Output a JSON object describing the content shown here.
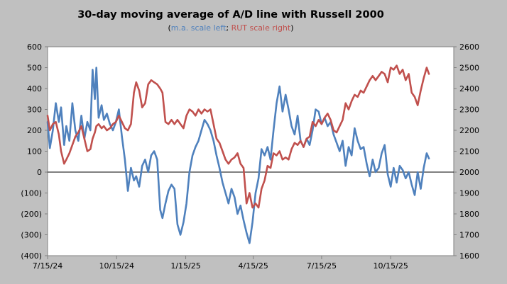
{
  "chart_data": {
    "type": "line",
    "title": "30-day moving average of A/D line with Russell 2000",
    "subtitle": {
      "open": "(",
      "left_note": "m.a. scale left",
      "sep": ";",
      "right_note": "RUT scale right",
      "close": ")"
    },
    "x_axis": {
      "start": "2024-07-15",
      "end": "2026-01-07",
      "tick_labels": [
        "7/15/24",
        "10/15/24",
        "1/15/25",
        "4/15/25",
        "7/15/25",
        "10/15/25"
      ],
      "tick_dates": [
        "2024-07-15",
        "2024-10-15",
        "2025-01-15",
        "2025-04-15",
        "2025-07-15",
        "2025-10-15"
      ]
    },
    "y_left": {
      "min": -400,
      "max": 600,
      "step": 100,
      "tick_labels": [
        "(400)",
        "(300)",
        "(200)",
        "(100)",
        "0",
        "100",
        "200",
        "300",
        "400",
        "500",
        "600"
      ]
    },
    "y_right": {
      "min": 1600,
      "max": 2600,
      "step": 100,
      "tick_labels": [
        "1600",
        "1700",
        "1800",
        "1900",
        "2000",
        "2100",
        "2200",
        "2300",
        "2400",
        "2500",
        "2600"
      ]
    },
    "grid": false,
    "series": [
      {
        "color": "#4f81bd",
        "axis": "left",
        "points": [
          [
            "2024-07-15",
            240
          ],
          [
            "2024-07-18",
            115
          ],
          [
            "2024-07-22",
            200
          ],
          [
            "2024-07-26",
            330
          ],
          [
            "2024-07-30",
            240
          ],
          [
            "2024-08-02",
            310
          ],
          [
            "2024-08-06",
            130
          ],
          [
            "2024-08-09",
            220
          ],
          [
            "2024-08-13",
            150
          ],
          [
            "2024-08-17",
            330
          ],
          [
            "2024-08-21",
            200
          ],
          [
            "2024-08-25",
            150
          ],
          [
            "2024-08-29",
            270
          ],
          [
            "2024-09-02",
            160
          ],
          [
            "2024-09-06",
            240
          ],
          [
            "2024-09-10",
            200
          ],
          [
            "2024-09-13",
            490
          ],
          [
            "2024-09-16",
            350
          ],
          [
            "2024-09-18",
            500
          ],
          [
            "2024-09-21",
            260
          ],
          [
            "2024-09-25",
            320
          ],
          [
            "2024-09-28",
            250
          ],
          [
            "2024-10-02",
            280
          ],
          [
            "2024-10-06",
            230
          ],
          [
            "2024-10-10",
            200
          ],
          [
            "2024-10-14",
            240
          ],
          [
            "2024-10-18",
            300
          ],
          [
            "2024-10-22",
            170
          ],
          [
            "2024-10-26",
            60
          ],
          [
            "2024-10-30",
            -90
          ],
          [
            "2024-11-03",
            20
          ],
          [
            "2024-11-07",
            -40
          ],
          [
            "2024-11-10",
            -20
          ],
          [
            "2024-11-14",
            -70
          ],
          [
            "2024-11-18",
            30
          ],
          [
            "2024-11-22",
            60
          ],
          [
            "2024-11-26",
            0
          ],
          [
            "2024-11-30",
            80
          ],
          [
            "2024-12-04",
            100
          ],
          [
            "2024-12-08",
            60
          ],
          [
            "2024-12-12",
            -180
          ],
          [
            "2024-12-15",
            -220
          ],
          [
            "2024-12-19",
            -150
          ],
          [
            "2024-12-23",
            -90
          ],
          [
            "2024-12-27",
            -60
          ],
          [
            "2024-12-31",
            -80
          ],
          [
            "2025-01-04",
            -250
          ],
          [
            "2025-01-08",
            -300
          ],
          [
            "2025-01-12",
            -240
          ],
          [
            "2025-01-16",
            -150
          ],
          [
            "2025-01-20",
            0
          ],
          [
            "2025-01-24",
            80
          ],
          [
            "2025-01-28",
            120
          ],
          [
            "2025-02-01",
            150
          ],
          [
            "2025-02-05",
            200
          ],
          [
            "2025-02-09",
            250
          ],
          [
            "2025-02-13",
            230
          ],
          [
            "2025-02-17",
            200
          ],
          [
            "2025-02-21",
            150
          ],
          [
            "2025-02-25",
            80
          ],
          [
            "2025-03-01",
            20
          ],
          [
            "2025-03-05",
            -50
          ],
          [
            "2025-03-09",
            -100
          ],
          [
            "2025-03-13",
            -150
          ],
          [
            "2025-03-17",
            -80
          ],
          [
            "2025-03-21",
            -120
          ],
          [
            "2025-03-25",
            -200
          ],
          [
            "2025-03-29",
            -160
          ],
          [
            "2025-04-02",
            -230
          ],
          [
            "2025-04-06",
            -290
          ],
          [
            "2025-04-10",
            -340
          ],
          [
            "2025-04-14",
            -240
          ],
          [
            "2025-04-18",
            -100
          ],
          [
            "2025-04-22",
            -30
          ],
          [
            "2025-04-26",
            110
          ],
          [
            "2025-04-30",
            80
          ],
          [
            "2025-05-04",
            120
          ],
          [
            "2025-05-08",
            60
          ],
          [
            "2025-05-12",
            200
          ],
          [
            "2025-05-16",
            330
          ],
          [
            "2025-05-20",
            410
          ],
          [
            "2025-05-24",
            290
          ],
          [
            "2025-05-28",
            370
          ],
          [
            "2025-06-01",
            300
          ],
          [
            "2025-06-05",
            220
          ],
          [
            "2025-06-09",
            180
          ],
          [
            "2025-06-13",
            270
          ],
          [
            "2025-06-17",
            150
          ],
          [
            "2025-06-21",
            120
          ],
          [
            "2025-06-25",
            160
          ],
          [
            "2025-06-29",
            130
          ],
          [
            "2025-07-03",
            200
          ],
          [
            "2025-07-07",
            300
          ],
          [
            "2025-07-11",
            290
          ],
          [
            "2025-07-15",
            230
          ],
          [
            "2025-07-19",
            260
          ],
          [
            "2025-07-23",
            220
          ],
          [
            "2025-07-27",
            240
          ],
          [
            "2025-07-31",
            180
          ],
          [
            "2025-08-04",
            140
          ],
          [
            "2025-08-08",
            100
          ],
          [
            "2025-08-12",
            150
          ],
          [
            "2025-08-16",
            30
          ],
          [
            "2025-08-20",
            120
          ],
          [
            "2025-08-24",
            80
          ],
          [
            "2025-08-28",
            210
          ],
          [
            "2025-09-01",
            150
          ],
          [
            "2025-09-05",
            110
          ],
          [
            "2025-09-09",
            120
          ],
          [
            "2025-09-13",
            40
          ],
          [
            "2025-09-17",
            -20
          ],
          [
            "2025-09-21",
            60
          ],
          [
            "2025-09-25",
            0
          ],
          [
            "2025-09-29",
            20
          ],
          [
            "2025-10-03",
            90
          ],
          [
            "2025-10-07",
            130
          ],
          [
            "2025-10-11",
            -10
          ],
          [
            "2025-10-15",
            -70
          ],
          [
            "2025-10-19",
            20
          ],
          [
            "2025-10-23",
            -50
          ],
          [
            "2025-10-27",
            30
          ],
          [
            "2025-10-31",
            10
          ],
          [
            "2025-11-04",
            -30
          ],
          [
            "2025-11-08",
            0
          ],
          [
            "2025-11-12",
            -60
          ],
          [
            "2025-11-16",
            -110
          ],
          [
            "2025-11-20",
            0
          ],
          [
            "2025-11-24",
            -80
          ],
          [
            "2025-11-28",
            20
          ],
          [
            "2025-12-02",
            90
          ],
          [
            "2025-12-05",
            65
          ]
        ]
      },
      {
        "color": "#c0504d",
        "axis": "right",
        "points": [
          [
            "2024-07-15",
            2270
          ],
          [
            "2024-07-18",
            2200
          ],
          [
            "2024-07-22",
            2230
          ],
          [
            "2024-07-26",
            2240
          ],
          [
            "2024-07-30",
            2180
          ],
          [
            "2024-08-02",
            2100
          ],
          [
            "2024-08-06",
            2040
          ],
          [
            "2024-08-09",
            2060
          ],
          [
            "2024-08-13",
            2090
          ],
          [
            "2024-08-17",
            2130
          ],
          [
            "2024-08-21",
            2170
          ],
          [
            "2024-08-25",
            2190
          ],
          [
            "2024-08-29",
            2220
          ],
          [
            "2024-09-02",
            2160
          ],
          [
            "2024-09-06",
            2100
          ],
          [
            "2024-09-10",
            2110
          ],
          [
            "2024-09-13",
            2160
          ],
          [
            "2024-09-16",
            2190
          ],
          [
            "2024-09-18",
            2220
          ],
          [
            "2024-09-21",
            2230
          ],
          [
            "2024-09-25",
            2210
          ],
          [
            "2024-09-28",
            2220
          ],
          [
            "2024-10-02",
            2200
          ],
          [
            "2024-10-06",
            2210
          ],
          [
            "2024-10-10",
            2230
          ],
          [
            "2024-10-14",
            2240
          ],
          [
            "2024-10-18",
            2270
          ],
          [
            "2024-10-22",
            2240
          ],
          [
            "2024-10-26",
            2210
          ],
          [
            "2024-10-30",
            2200
          ],
          [
            "2024-11-03",
            2230
          ],
          [
            "2024-11-07",
            2380
          ],
          [
            "2024-11-10",
            2430
          ],
          [
            "2024-11-14",
            2390
          ],
          [
            "2024-11-18",
            2310
          ],
          [
            "2024-11-22",
            2330
          ],
          [
            "2024-11-26",
            2420
          ],
          [
            "2024-11-30",
            2440
          ],
          [
            "2024-12-04",
            2430
          ],
          [
            "2024-12-08",
            2420
          ],
          [
            "2024-12-12",
            2400
          ],
          [
            "2024-12-15",
            2380
          ],
          [
            "2024-12-19",
            2240
          ],
          [
            "2024-12-23",
            2230
          ],
          [
            "2024-12-27",
            2250
          ],
          [
            "2024-12-31",
            2230
          ],
          [
            "2025-01-04",
            2250
          ],
          [
            "2025-01-08",
            2230
          ],
          [
            "2025-01-12",
            2210
          ],
          [
            "2025-01-16",
            2270
          ],
          [
            "2025-01-20",
            2300
          ],
          [
            "2025-01-24",
            2290
          ],
          [
            "2025-01-28",
            2270
          ],
          [
            "2025-02-01",
            2300
          ],
          [
            "2025-02-05",
            2280
          ],
          [
            "2025-02-09",
            2300
          ],
          [
            "2025-02-13",
            2290
          ],
          [
            "2025-02-17",
            2300
          ],
          [
            "2025-02-21",
            2230
          ],
          [
            "2025-02-25",
            2160
          ],
          [
            "2025-03-01",
            2140
          ],
          [
            "2025-03-05",
            2100
          ],
          [
            "2025-03-09",
            2060
          ],
          [
            "2025-03-13",
            2040
          ],
          [
            "2025-03-17",
            2060
          ],
          [
            "2025-03-21",
            2070
          ],
          [
            "2025-03-25",
            2090
          ],
          [
            "2025-03-29",
            2040
          ],
          [
            "2025-04-02",
            2020
          ],
          [
            "2025-04-06",
            1850
          ],
          [
            "2025-04-10",
            1900
          ],
          [
            "2025-04-14",
            1830
          ],
          [
            "2025-04-18",
            1850
          ],
          [
            "2025-04-22",
            1830
          ],
          [
            "2025-04-26",
            1920
          ],
          [
            "2025-04-30",
            1960
          ],
          [
            "2025-05-04",
            2030
          ],
          [
            "2025-05-08",
            2020
          ],
          [
            "2025-05-12",
            2090
          ],
          [
            "2025-05-16",
            2080
          ],
          [
            "2025-05-20",
            2100
          ],
          [
            "2025-05-24",
            2060
          ],
          [
            "2025-05-28",
            2070
          ],
          [
            "2025-06-01",
            2060
          ],
          [
            "2025-06-05",
            2110
          ],
          [
            "2025-06-09",
            2140
          ],
          [
            "2025-06-13",
            2130
          ],
          [
            "2025-06-17",
            2150
          ],
          [
            "2025-06-21",
            2120
          ],
          [
            "2025-06-25",
            2160
          ],
          [
            "2025-06-29",
            2170
          ],
          [
            "2025-07-03",
            2240
          ],
          [
            "2025-07-07",
            2220
          ],
          [
            "2025-07-11",
            2250
          ],
          [
            "2025-07-15",
            2230
          ],
          [
            "2025-07-19",
            2260
          ],
          [
            "2025-07-23",
            2280
          ],
          [
            "2025-07-27",
            2250
          ],
          [
            "2025-07-31",
            2200
          ],
          [
            "2025-08-04",
            2190
          ],
          [
            "2025-08-08",
            2220
          ],
          [
            "2025-08-12",
            2250
          ],
          [
            "2025-08-16",
            2330
          ],
          [
            "2025-08-20",
            2300
          ],
          [
            "2025-08-24",
            2340
          ],
          [
            "2025-08-28",
            2370
          ],
          [
            "2025-09-01",
            2360
          ],
          [
            "2025-09-05",
            2390
          ],
          [
            "2025-09-09",
            2380
          ],
          [
            "2025-09-13",
            2410
          ],
          [
            "2025-09-17",
            2440
          ],
          [
            "2025-09-21",
            2460
          ],
          [
            "2025-09-25",
            2440
          ],
          [
            "2025-09-29",
            2460
          ],
          [
            "2025-10-03",
            2480
          ],
          [
            "2025-10-07",
            2470
          ],
          [
            "2025-10-11",
            2430
          ],
          [
            "2025-10-15",
            2500
          ],
          [
            "2025-10-19",
            2490
          ],
          [
            "2025-10-23",
            2510
          ],
          [
            "2025-10-27",
            2470
          ],
          [
            "2025-10-31",
            2490
          ],
          [
            "2025-11-04",
            2440
          ],
          [
            "2025-11-08",
            2470
          ],
          [
            "2025-11-12",
            2380
          ],
          [
            "2025-11-16",
            2360
          ],
          [
            "2025-11-20",
            2320
          ],
          [
            "2025-11-24",
            2390
          ],
          [
            "2025-11-28",
            2450
          ],
          [
            "2025-12-02",
            2500
          ],
          [
            "2025-12-05",
            2470
          ]
        ]
      }
    ]
  }
}
